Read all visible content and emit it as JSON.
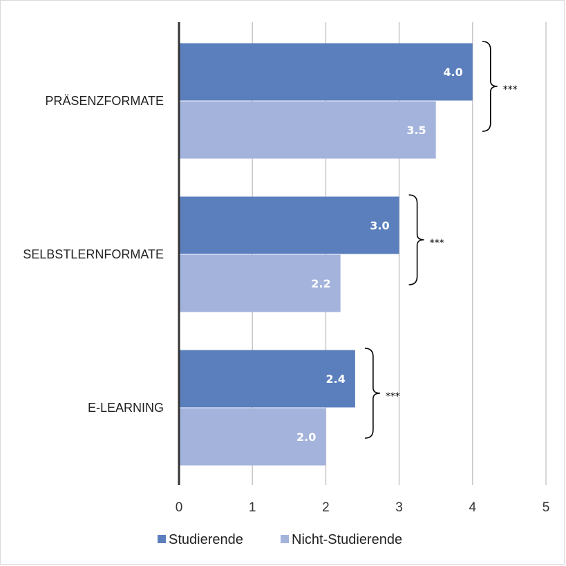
{
  "chart_data": {
    "type": "bar",
    "orientation": "horizontal",
    "categories": [
      "PRÄSENZFORMATE",
      "SELBSTLERNFORMATE",
      "E-LEARNING"
    ],
    "series": [
      {
        "name": "Studierende",
        "values": [
          4.0,
          3.0,
          2.4
        ],
        "color": "#5b7fbd"
      },
      {
        "name": "Nicht-Studierende",
        "values": [
          3.5,
          2.2,
          2.0
        ],
        "color": "#a3b3dc"
      }
    ],
    "value_labels": [
      [
        "4.0",
        "3.0",
        "2.4"
      ],
      [
        "3.5",
        "2.2",
        "2.0"
      ]
    ],
    "significance": [
      "***",
      "***",
      "***"
    ],
    "xlim": [
      0,
      5
    ],
    "xticks": [
      "0",
      "1",
      "2",
      "3",
      "4",
      "5"
    ],
    "grid": true,
    "legend": "bottom",
    "title": "",
    "xlabel": "",
    "ylabel": ""
  }
}
